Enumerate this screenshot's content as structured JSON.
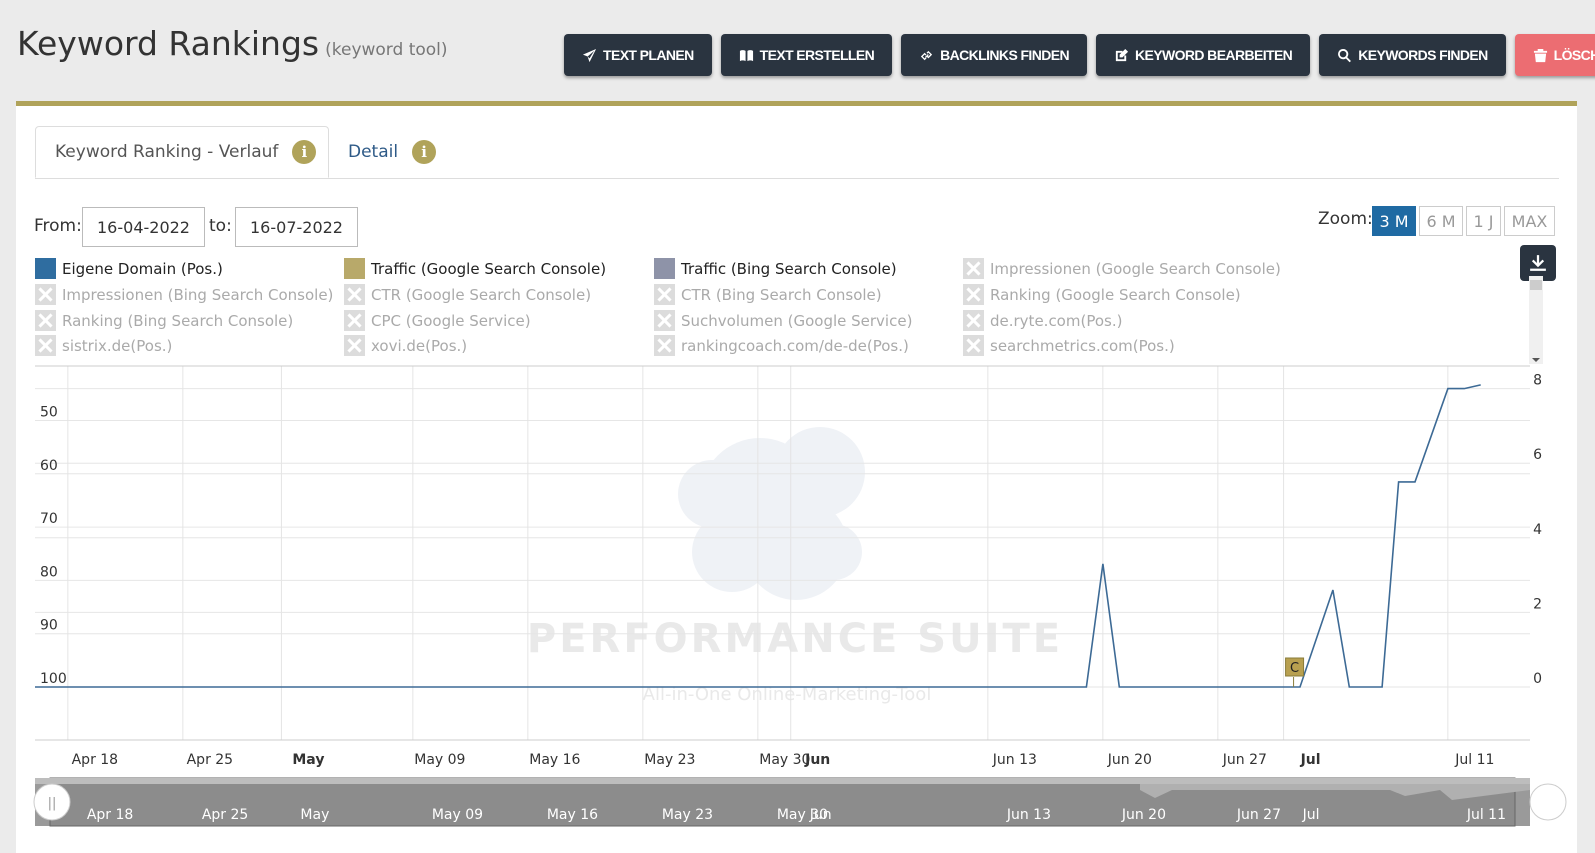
{
  "header": {
    "title": "Keyword Rankings",
    "subtitle": "(keyword tool)"
  },
  "toolbar": [
    {
      "label": "TEXT PLANEN",
      "icon": "paper-plane-icon",
      "color": "#2a3440"
    },
    {
      "label": "TEXT ERSTELLEN",
      "icon": "book-icon",
      "color": "#2a3440"
    },
    {
      "label": "BACKLINKS FINDEN",
      "icon": "link-icon",
      "color": "#2a3440"
    },
    {
      "label": "KEYWORD BEARBEITEN",
      "icon": "edit-icon",
      "color": "#2a3440"
    },
    {
      "label": "KEYWORDS FINDEN",
      "icon": "search-icon",
      "color": "#2a3440"
    },
    {
      "label": "LÖSCHEN",
      "icon": "trash-icon",
      "color": "#ec6d72"
    }
  ],
  "tabs": [
    {
      "label": "Keyword Ranking - Verlauf",
      "active": true
    },
    {
      "label": "Detail",
      "active": false
    }
  ],
  "info_glyph": "i",
  "dates": {
    "from_label": "From:",
    "from": "16-04-2022",
    "to_label": "to:",
    "to": "16-07-2022"
  },
  "zoom": {
    "label": "Zoom:",
    "options": [
      "3 M",
      "6 M",
      "1 J",
      "MAX"
    ],
    "active": "3 M"
  },
  "accent_color": "#b0a35a",
  "legend": [
    {
      "label": "Eigene Domain (Pos.)",
      "enabled": true,
      "color": "#2f6da0"
    },
    {
      "label": "Traffic (Google Search Console)",
      "enabled": true,
      "color": "#b8a96a"
    },
    {
      "label": "Traffic (Bing Search Console)",
      "enabled": true,
      "color": "#8e93a8"
    },
    {
      "label": "Impressionen (Google Search Console)",
      "enabled": false
    },
    {
      "label": "Impressionen (Bing Search Console)",
      "enabled": false
    },
    {
      "label": "CTR (Google Search Console)",
      "enabled": false
    },
    {
      "label": "CTR (Bing Search Console)",
      "enabled": false
    },
    {
      "label": "Ranking (Google Search Console)",
      "enabled": false
    },
    {
      "label": "Ranking (Bing Search Console)",
      "enabled": false
    },
    {
      "label": "CPC (Google Service)",
      "enabled": false
    },
    {
      "label": "Suchvolumen (Google Service)",
      "enabled": false
    },
    {
      "label": "de.ryte.com(Pos.)",
      "enabled": false
    },
    {
      "label": "sistrix.de(Pos.)",
      "enabled": false
    },
    {
      "label": "xovi.de(Pos.)",
      "enabled": false
    },
    {
      "label": "rankingcoach.com/de-de(Pos.)",
      "enabled": false
    },
    {
      "label": "searchmetrics.com(Pos.)",
      "enabled": false
    }
  ],
  "watermark": {
    "title": "PERFORMANCE SUITE",
    "subtitle": "All-in-One Online-Marketing-Tool"
  },
  "chart_data": {
    "type": "line",
    "x_range": [
      "2022-04-16",
      "2022-07-16"
    ],
    "y_left": {
      "ticks": [
        50,
        60,
        70,
        80,
        90,
        100
      ],
      "reversed": true,
      "series": "Eigene Domain (Pos.)"
    },
    "y_right": {
      "ticks": [
        0,
        2,
        4,
        6,
        8
      ],
      "range": [
        0,
        9.6
      ],
      "series": "Traffic (Google Search Console)"
    },
    "x_ticks": [
      {
        "label": "Apr 18",
        "date": "2022-04-18",
        "bold": false
      },
      {
        "label": "Apr 25",
        "date": "2022-04-25",
        "bold": false
      },
      {
        "label": "May",
        "date": "2022-05-01",
        "bold": true
      },
      {
        "label": "May 09",
        "date": "2022-05-09",
        "bold": false
      },
      {
        "label": "May 16",
        "date": "2022-05-16",
        "bold": false
      },
      {
        "label": "May 23",
        "date": "2022-05-23",
        "bold": false
      },
      {
        "label": "May 30",
        "date": "2022-05-30",
        "bold": false
      },
      {
        "label": "Jun",
        "date": "2022-06-01",
        "bold": true
      },
      {
        "label": "Jun 13",
        "date": "2022-06-13",
        "bold": false
      },
      {
        "label": "Jun 20",
        "date": "2022-06-20",
        "bold": false
      },
      {
        "label": "Jun 27",
        "date": "2022-06-27",
        "bold": false
      },
      {
        "label": "Jul",
        "date": "2022-07-01",
        "bold": true
      },
      {
        "label": "Jul 11",
        "date": "2022-07-11",
        "bold": false
      }
    ],
    "series": [
      {
        "name": "Traffic (Google Search Console)",
        "axis": "right",
        "color": "#3d6a95",
        "points": [
          [
            "2022-04-16",
            0
          ],
          [
            "2022-06-19",
            0
          ],
          [
            "2022-06-20",
            3.3
          ],
          [
            "2022-06-21",
            0
          ],
          [
            "2022-07-02",
            0
          ],
          [
            "2022-07-04",
            2.6
          ],
          [
            "2022-07-05",
            0
          ],
          [
            "2022-07-07",
            0
          ],
          [
            "2022-07-08",
            5.5
          ],
          [
            "2022-07-09",
            5.5
          ],
          [
            "2022-07-11",
            8.0
          ],
          [
            "2022-07-12",
            8.0
          ],
          [
            "2022-07-13",
            8.1
          ]
        ]
      }
    ],
    "flags": [
      {
        "date": "2022-07-01",
        "label": "C"
      }
    ],
    "navigator": {
      "labels": [
        "Apr 18",
        "Apr 25",
        "May",
        "May 09",
        "May 16",
        "May 23",
        "May 30",
        "Jun",
        "Jun 13",
        "Jun 20",
        "Jun 27",
        "Jul",
        "Jul 11"
      ],
      "handle_glyph": "||"
    }
  }
}
